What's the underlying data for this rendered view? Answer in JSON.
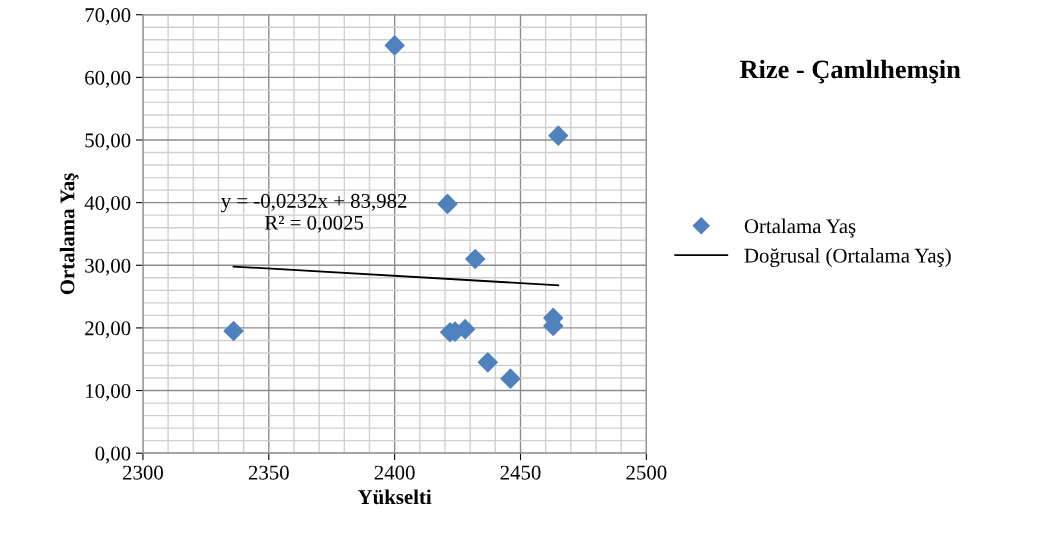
{
  "chart_data": {
    "type": "scatter",
    "title": "Rize - Çamlıhemşin",
    "xlabel": "Yükselti",
    "ylabel": "Ortalama Yaş",
    "series": [
      {
        "name": "Ortalama Yaş",
        "color": "#4f81bd",
        "marker": "diamond",
        "x": [
          2336,
          2400,
          2465,
          2421,
          2432,
          2422,
          2424,
          2428,
          2437,
          2446,
          2463,
          2463
        ],
        "values": [
          19.5,
          65.1,
          50.7,
          39.8,
          31.0,
          19.3,
          19.4,
          19.8,
          14.5,
          11.9,
          21.6,
          20.3
        ]
      },
      {
        "name": "Doğrusal (Ortalama Yaş)",
        "type": "line",
        "color": "#000000",
        "marker": "none",
        "x": [
          2336,
          2465
        ],
        "values": [
          29.8,
          26.8
        ]
      }
    ],
    "annotations": [
      "y = -0,0232x + 83,982\nR² = 0,0025"
    ],
    "xlim": [
      2300,
      2500
    ],
    "xticks": [
      2300,
      {
        "value": 2310,
        "label": null
      },
      {
        "value": 2320,
        "label": null
      },
      {
        "value": 2330,
        "label": null
      },
      {
        "value": 2340,
        "label": null
      },
      2350,
      {
        "value": 2360,
        "label": null
      },
      {
        "value": 2370,
        "label": null
      },
      {
        "value": 2380,
        "label": null
      },
      {
        "value": 2390,
        "label": null
      },
      2400,
      {
        "value": 2410,
        "label": null
      },
      {
        "value": 2420,
        "label": null
      },
      {
        "value": 2430,
        "label": null
      },
      {
        "value": 2440,
        "label": null
      },
      2450,
      {
        "value": 2460,
        "label": null
      },
      {
        "value": 2470,
        "label": null
      },
      {
        "value": 2480,
        "label": null
      },
      {
        "value": 2490,
        "label": null
      },
      2500
    ],
    "ylim": [
      0,
      70
    ],
    "yticks": [
      {
        "value": 0,
        "label": "0,00"
      },
      {
        "value": 2,
        "label": null
      },
      {
        "value": 4,
        "label": null
      },
      {
        "value": 6,
        "label": null
      },
      {
        "value": 8,
        "label": null
      },
      {
        "value": 10,
        "label": "10,00"
      },
      {
        "value": 12,
        "label": null
      },
      {
        "value": 14,
        "label": null
      },
      {
        "value": 16,
        "label": null
      },
      {
        "value": 18,
        "label": null
      },
      {
        "value": 20,
        "label": "20,00"
      },
      {
        "value": 22,
        "label": null
      },
      {
        "value": 24,
        "label": null
      },
      {
        "value": 26,
        "label": null
      },
      {
        "value": 28,
        "label": null
      },
      {
        "value": 30,
        "label": "30,00"
      },
      {
        "value": 32,
        "label": null
      },
      {
        "value": 34,
        "label": null
      },
      {
        "value": 36,
        "label": null
      },
      {
        "value": 38,
        "label": null
      },
      {
        "value": 40,
        "label": "40,00"
      },
      {
        "value": 42,
        "label": null
      },
      {
        "value": 44,
        "label": null
      },
      {
        "value": 46,
        "label": null
      },
      {
        "value": 48,
        "label": null
      },
      {
        "value": 50,
        "label": "50,00"
      },
      {
        "value": 52,
        "label": null
      },
      {
        "value": 54,
        "label": null
      },
      {
        "value": 56,
        "label": null
      },
      {
        "value": 58,
        "label": null
      },
      {
        "value": 60,
        "label": "60,00"
      },
      {
        "value": 62,
        "label": null
      },
      {
        "value": 64,
        "label": null
      },
      {
        "value": 66,
        "label": null
      },
      {
        "value": 68,
        "label": null
      },
      {
        "value": 70,
        "label": "70,00"
      }
    ],
    "grid": true,
    "legend": "right"
  }
}
